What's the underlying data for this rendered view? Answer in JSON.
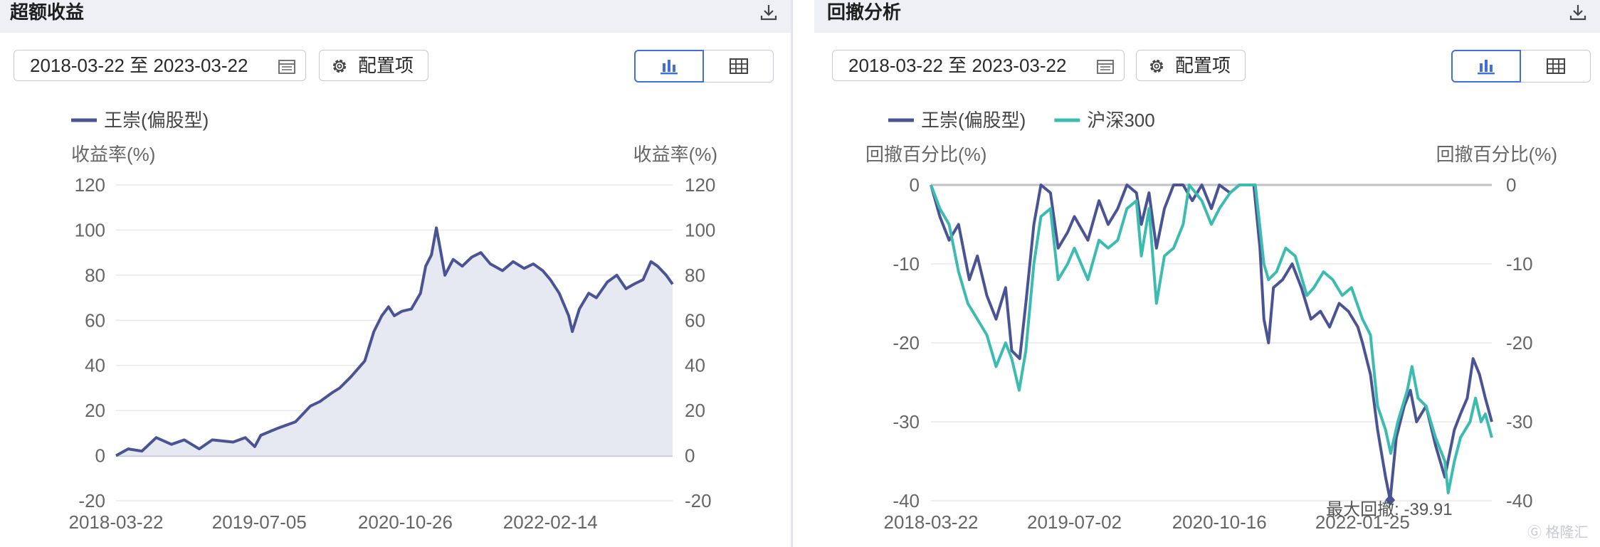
{
  "panels": {
    "excess": {
      "title": "超额收益",
      "date_range": "2018-03-22 至 2023-03-22",
      "config_label": "配置项",
      "download_icon": "download-icon",
      "calendar_icon": "calendar-icon",
      "view_toggle": {
        "chart_icon": "bar-chart-icon",
        "table_icon": "table-icon",
        "active": "chart"
      }
    },
    "drawdown": {
      "title": "回撤分析",
      "date_range": "2018-03-22 至 2023-03-22",
      "config_label": "配置项",
      "download_icon": "download-icon",
      "calendar_icon": "calendar-icon",
      "view_toggle": {
        "chart_icon": "bar-chart-icon",
        "table_icon": "table-icon",
        "active": "chart"
      },
      "watermark": "格隆汇"
    }
  },
  "colors": {
    "fund": "#4a5494",
    "index": "#3cbcb0",
    "area_fill": "#e6e8f2",
    "grid": "#e8e9ee",
    "axis_text": "#666666",
    "active_toggle": "#3f6fd8"
  },
  "chart_data": [
    {
      "type": "area",
      "title": "",
      "ylabel_left": "收益率(%)",
      "ylabel_right": "收益率(%)",
      "ylim": [
        -20,
        120
      ],
      "yticks": [
        -20,
        0,
        20,
        40,
        60,
        80,
        100,
        120
      ],
      "x_ticks": [
        "2018-03-22",
        "2019-07-05",
        "2020-10-26",
        "2022-02-14"
      ],
      "x_range": [
        "2018-03-22",
        "2023-03-22"
      ],
      "grid": true,
      "legend_position": "top-left",
      "series": [
        {
          "name": "王崇(偏股型)",
          "color": "#4a5494",
          "points": [
            [
              "2018-03-22",
              0
            ],
            [
              "2018-05-01",
              3
            ],
            [
              "2018-06-15",
              2
            ],
            [
              "2018-08-01",
              8
            ],
            [
              "2018-09-20",
              5
            ],
            [
              "2018-11-01",
              7
            ],
            [
              "2018-12-20",
              3
            ],
            [
              "2019-02-01",
              7
            ],
            [
              "2019-04-10",
              6
            ],
            [
              "2019-05-20",
              8
            ],
            [
              "2019-06-20",
              4
            ],
            [
              "2019-07-10",
              9
            ],
            [
              "2019-09-01",
              12
            ],
            [
              "2019-11-01",
              15
            ],
            [
              "2019-12-20",
              22
            ],
            [
              "2020-01-20",
              24
            ],
            [
              "2020-03-01",
              28
            ],
            [
              "2020-03-25",
              30
            ],
            [
              "2020-05-01",
              35
            ],
            [
              "2020-06-15",
              42
            ],
            [
              "2020-07-15",
              55
            ],
            [
              "2020-08-10",
              62
            ],
            [
              "2020-09-01",
              66
            ],
            [
              "2020-09-20",
              62
            ],
            [
              "2020-10-15",
              64
            ],
            [
              "2020-11-15",
              65
            ],
            [
              "2020-12-15",
              72
            ],
            [
              "2021-01-01",
              84
            ],
            [
              "2021-01-20",
              89
            ],
            [
              "2021-02-05",
              101
            ],
            [
              "2021-02-20",
              90
            ],
            [
              "2021-03-05",
              80
            ],
            [
              "2021-04-01",
              87
            ],
            [
              "2021-05-01",
              84
            ],
            [
              "2021-06-01",
              88
            ],
            [
              "2021-07-01",
              90
            ],
            [
              "2021-08-01",
              85
            ],
            [
              "2021-09-10",
              82
            ],
            [
              "2021-10-15",
              86
            ],
            [
              "2021-11-20",
              83
            ],
            [
              "2021-12-20",
              85
            ],
            [
              "2022-01-20",
              82
            ],
            [
              "2022-02-14",
              78
            ],
            [
              "2022-03-15",
              72
            ],
            [
              "2022-04-15",
              62
            ],
            [
              "2022-04-27",
              55
            ],
            [
              "2022-05-20",
              65
            ],
            [
              "2022-06-20",
              72
            ],
            [
              "2022-07-15",
              70
            ],
            [
              "2022-08-20",
              77
            ],
            [
              "2022-09-20",
              80
            ],
            [
              "2022-10-20",
              74
            ],
            [
              "2022-11-15",
              76
            ],
            [
              "2022-12-15",
              78
            ],
            [
              "2023-01-10",
              86
            ],
            [
              "2023-02-01",
              84
            ],
            [
              "2023-03-01",
              80
            ],
            [
              "2023-03-22",
              76
            ]
          ]
        }
      ]
    },
    {
      "type": "line",
      "title": "",
      "ylabel_left": "回撤百分比(%)",
      "ylabel_right": "回撤百分比(%)",
      "ylim": [
        -40,
        0
      ],
      "yticks": [
        -40,
        -30,
        -20,
        -10,
        0
      ],
      "x_ticks": [
        "2018-03-22",
        "2019-07-02",
        "2020-10-16",
        "2022-01-25"
      ],
      "x_range": [
        "2018-03-22",
        "2023-03-22"
      ],
      "grid": true,
      "legend_position": "top-left",
      "annotation": {
        "label": "最大回撤: -39.91",
        "date": "2022-04-25",
        "value": -39.91
      },
      "series": [
        {
          "name": "王崇(偏股型)",
          "color": "#4a5494",
          "points": [
            [
              "2018-03-22",
              0
            ],
            [
              "2018-04-20",
              -4
            ],
            [
              "2018-05-20",
              -7
            ],
            [
              "2018-06-20",
              -5
            ],
            [
              "2018-07-25",
              -12
            ],
            [
              "2018-08-20",
              -9
            ],
            [
              "2018-09-20",
              -14
            ],
            [
              "2018-10-20",
              -17
            ],
            [
              "2018-11-20",
              -13
            ],
            [
              "2018-12-10",
              -21
            ],
            [
              "2019-01-05",
              -22
            ],
            [
              "2019-01-25",
              -15
            ],
            [
              "2019-02-20",
              -5
            ],
            [
              "2019-03-15",
              0
            ],
            [
              "2019-04-15",
              -1
            ],
            [
              "2019-05-10",
              -8
            ],
            [
              "2019-06-10",
              -6
            ],
            [
              "2019-07-02",
              -4
            ],
            [
              "2019-08-15",
              -7
            ],
            [
              "2019-09-20",
              -2
            ],
            [
              "2019-10-20",
              -5
            ],
            [
              "2019-11-20",
              -3
            ],
            [
              "2019-12-20",
              0
            ],
            [
              "2020-01-20",
              -1
            ],
            [
              "2020-02-05",
              -5
            ],
            [
              "2020-03-01",
              -1
            ],
            [
              "2020-03-25",
              -8
            ],
            [
              "2020-04-20",
              -3
            ],
            [
              "2020-05-20",
              0
            ],
            [
              "2020-06-20",
              0
            ],
            [
              "2020-07-20",
              -2
            ],
            [
              "2020-08-20",
              0
            ],
            [
              "2020-09-20",
              -3
            ],
            [
              "2020-10-16",
              0
            ],
            [
              "2020-11-20",
              -1
            ],
            [
              "2020-12-20",
              0
            ],
            [
              "2021-01-20",
              0
            ],
            [
              "2021-02-05",
              0
            ],
            [
              "2021-02-25",
              -8
            ],
            [
              "2021-03-10",
              -17
            ],
            [
              "2021-03-25",
              -20
            ],
            [
              "2021-04-10",
              -13
            ],
            [
              "2021-05-10",
              -12
            ],
            [
              "2021-06-10",
              -10
            ],
            [
              "2021-07-10",
              -13
            ],
            [
              "2021-08-10",
              -17
            ],
            [
              "2021-09-10",
              -16
            ],
            [
              "2021-10-10",
              -18
            ],
            [
              "2021-11-10",
              -15
            ],
            [
              "2021-12-10",
              -16
            ],
            [
              "2022-01-10",
              -18
            ],
            [
              "2022-01-25",
              -20
            ],
            [
              "2022-02-20",
              -24
            ],
            [
              "2022-03-15",
              -31
            ],
            [
              "2022-04-10",
              -37
            ],
            [
              "2022-04-25",
              -39.91
            ],
            [
              "2022-05-15",
              -32
            ],
            [
              "2022-06-10",
              -28
            ],
            [
              "2022-06-30",
              -26
            ],
            [
              "2022-07-20",
              -30
            ],
            [
              "2022-08-20",
              -28
            ],
            [
              "2022-09-20",
              -33
            ],
            [
              "2022-10-20",
              -37
            ],
            [
              "2022-11-20",
              -31
            ],
            [
              "2022-12-10",
              -29
            ],
            [
              "2023-01-01",
              -27
            ],
            [
              "2023-01-20",
              -22
            ],
            [
              "2023-02-10",
              -24
            ],
            [
              "2023-03-01",
              -27
            ],
            [
              "2023-03-22",
              -30
            ]
          ]
        },
        {
          "name": "沪深300",
          "color": "#3cbcb0",
          "points": [
            [
              "2018-03-22",
              0
            ],
            [
              "2018-04-20",
              -3
            ],
            [
              "2018-05-20",
              -5
            ],
            [
              "2018-06-20",
              -11
            ],
            [
              "2018-07-20",
              -15
            ],
            [
              "2018-08-20",
              -17
            ],
            [
              "2018-09-20",
              -19
            ],
            [
              "2018-10-20",
              -23
            ],
            [
              "2018-11-20",
              -20
            ],
            [
              "2018-12-10",
              -22
            ],
            [
              "2019-01-03",
              -26
            ],
            [
              "2019-01-25",
              -21
            ],
            [
              "2019-02-20",
              -10
            ],
            [
              "2019-03-15",
              -4
            ],
            [
              "2019-04-15",
              -3
            ],
            [
              "2019-05-10",
              -12
            ],
            [
              "2019-06-10",
              -10
            ],
            [
              "2019-07-02",
              -8
            ],
            [
              "2019-08-15",
              -12
            ],
            [
              "2019-09-20",
              -7
            ],
            [
              "2019-10-20",
              -8
            ],
            [
              "2019-11-20",
              -7
            ],
            [
              "2019-12-20",
              -3
            ],
            [
              "2020-01-20",
              -2
            ],
            [
              "2020-02-05",
              -9
            ],
            [
              "2020-03-01",
              -3
            ],
            [
              "2020-03-25",
              -15
            ],
            [
              "2020-04-20",
              -9
            ],
            [
              "2020-05-20",
              -8
            ],
            [
              "2020-06-20",
              -5
            ],
            [
              "2020-07-10",
              0
            ],
            [
              "2020-08-20",
              -2
            ],
            [
              "2020-09-20",
              -5
            ],
            [
              "2020-10-16",
              -3
            ],
            [
              "2020-11-20",
              -1
            ],
            [
              "2020-12-20",
              0
            ],
            [
              "2021-01-20",
              0
            ],
            [
              "2021-02-10",
              0
            ],
            [
              "2021-03-10",
              -10
            ],
            [
              "2021-03-25",
              -12
            ],
            [
              "2021-04-20",
              -11
            ],
            [
              "2021-05-20",
              -8
            ],
            [
              "2021-06-20",
              -9
            ],
            [
              "2021-07-28",
              -14
            ],
            [
              "2021-08-20",
              -13
            ],
            [
              "2021-09-20",
              -11
            ],
            [
              "2021-10-20",
              -12
            ],
            [
              "2021-11-20",
              -14
            ],
            [
              "2021-12-20",
              -13
            ],
            [
              "2022-01-25",
              -17
            ],
            [
              "2022-02-20",
              -19
            ],
            [
              "2022-03-15",
              -28
            ],
            [
              "2022-04-10",
              -31
            ],
            [
              "2022-04-27",
              -34
            ],
            [
              "2022-05-20",
              -30
            ],
            [
              "2022-06-20",
              -26
            ],
            [
              "2022-07-05",
              -23
            ],
            [
              "2022-07-25",
              -27
            ],
            [
              "2022-08-20",
              -28
            ],
            [
              "2022-09-20",
              -32
            ],
            [
              "2022-10-20",
              -35
            ],
            [
              "2022-10-31",
              -39
            ],
            [
              "2022-11-20",
              -35
            ],
            [
              "2022-12-10",
              -32
            ],
            [
              "2023-01-10",
              -30
            ],
            [
              "2023-01-28",
              -27
            ],
            [
              "2023-02-15",
              -30
            ],
            [
              "2023-03-01",
              -29
            ],
            [
              "2023-03-22",
              -32
            ]
          ]
        }
      ]
    }
  ]
}
